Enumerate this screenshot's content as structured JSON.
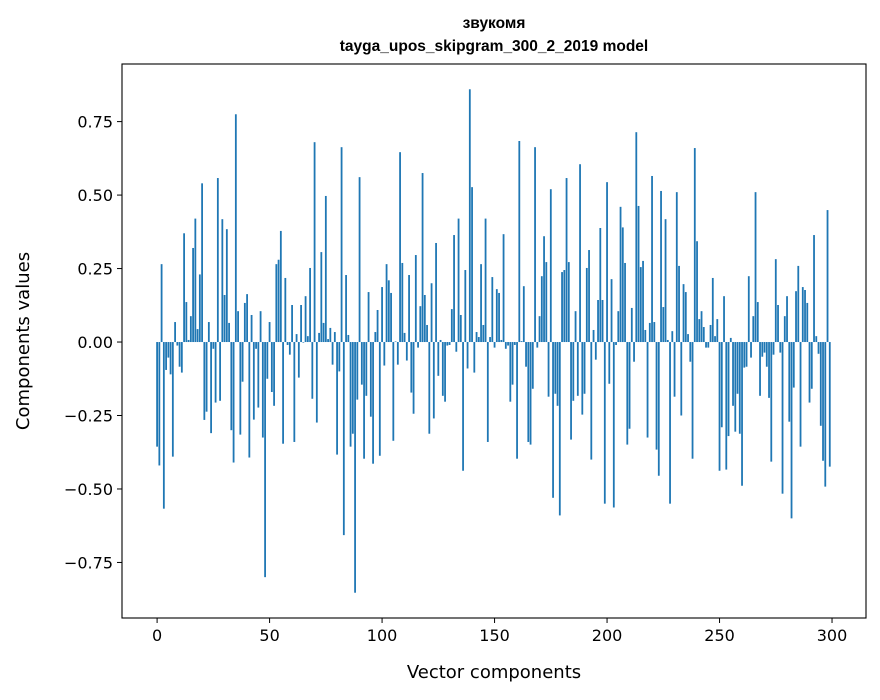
{
  "chart_data": {
    "type": "bar",
    "title": "звукомя",
    "subtitle": "tayga_upos_skipgram_300_2_2019 model",
    "xlabel": "Vector components",
    "ylabel": "Components values",
    "xlim": [
      -15.6,
      315.1
    ],
    "ylim": [
      -0.939,
      0.946
    ],
    "xticks": [
      0,
      50,
      100,
      150,
      200,
      250,
      300
    ],
    "xtick_labels": [
      "0",
      "50",
      "100",
      "150",
      "200",
      "250",
      "300"
    ],
    "yticks": [
      -0.75,
      -0.5,
      -0.25,
      0.0,
      0.25,
      0.5,
      0.75
    ],
    "ytick_labels": [
      "−0.75",
      "−0.50",
      "−0.25",
      "0.00",
      "0.25",
      "0.50",
      "0.75"
    ],
    "grid": false,
    "bar_color": "#1f77b4",
    "values": [
      -0.356,
      -0.42,
      0.265,
      -0.567,
      -0.095,
      -0.053,
      -0.11,
      -0.39,
      0.068,
      -0.012,
      -0.084,
      -0.104,
      0.37,
      0.136,
      0.007,
      0.088,
      0.32,
      0.42,
      0.044,
      0.23,
      0.54,
      -0.265,
      -0.237,
      0.068,
      -0.31,
      -0.023,
      -0.206,
      0.558,
      -0.2,
      0.418,
      0.16,
      0.384,
      0.065,
      -0.3,
      -0.41,
      0.775,
      0.105,
      -0.315,
      -0.135,
      0.133,
      0.163,
      -0.393,
      0.092,
      -0.264,
      -0.023,
      -0.223,
      0.105,
      -0.325,
      -0.8,
      -0.125,
      0.068,
      -0.17,
      -0.217,
      0.265,
      0.28,
      0.378,
      -0.346,
      0.218,
      -0.01,
      -0.043,
      0.126,
      -0.34,
      0.027,
      -0.121,
      0.126,
      -0.002,
      0.156,
      0.02,
      0.252,
      -0.193,
      0.68,
      -0.274,
      0.031,
      0.306,
      0.065,
      0.497,
      0.01,
      0.048,
      -0.077,
      0.034,
      -0.383,
      -0.1,
      0.663,
      -0.657,
      0.228,
      0.024,
      -0.356,
      -0.312,
      -0.853,
      -0.196,
      0.561,
      -0.145,
      -0.397,
      -0.183,
      0.17,
      -0.254,
      -0.414,
      0.034,
      0.109,
      -0.387,
      0.187,
      -0.08,
      0.265,
      0.21,
      0.167,
      -0.336,
      0.002,
      -0.077,
      0.646,
      0.269,
      0.031,
      -0.063,
      0.228,
      -0.172,
      -0.244,
      0.296,
      -0.019,
      0.122,
      0.575,
      0.16,
      0.058,
      -0.312,
      0.2,
      -0.26,
      0.337,
      -0.115,
      0.007,
      -0.183,
      -0.203,
      -0.012,
      -0.01,
      0.112,
      0.364,
      -0.033,
      0.42,
      0.092,
      -0.438,
      0.245,
      -0.09,
      0.86,
      0.527,
      -0.104,
      0.034,
      0.017,
      0.265,
      0.058,
      0.42,
      -0.34,
      0.017,
      0.221,
      -0.019,
      0.18,
      0.167,
      0.007,
      0.367,
      -0.023,
      -0.012,
      -0.203,
      -0.145,
      -0.01,
      -0.397,
      0.684,
      0.003,
      0.19,
      -0.084,
      -0.34,
      -0.349,
      -0.159,
      0.663,
      -0.019,
      0.088,
      0.224,
      0.36,
      0.272,
      -0.186,
      0.52,
      -0.53,
      -0.176,
      -0.217,
      -0.59,
      0.238,
      0.245,
      0.558,
      0.272,
      -0.332,
      -0.2,
      0.105,
      -0.183,
      0.605,
      -0.247,
      -0.176,
      0.252,
      0.313,
      -0.4,
      0.041,
      -0.06,
      0.143,
      0.388,
      0.143,
      -0.55,
      0.544,
      -0.142,
      0.214,
      -0.563,
      -0.01,
      0.105,
      0.46,
      0.39,
      0.269,
      -0.349,
      -0.295,
      0.116,
      -0.067,
      0.714,
      0.463,
      0.255,
      0.276,
      0.041,
      -0.325,
      0.065,
      0.565,
      0.068,
      -0.366,
      -0.455,
      0.514,
      0.119,
      0.418,
      0.007,
      -0.55,
      0.037,
      -0.186,
      0.51,
      0.259,
      -0.25,
      0.197,
      0.17,
      0.027,
      -0.067,
      -0.397,
      0.66,
      0.343,
      0.078,
      0.105,
      0.051,
      -0.019,
      -0.019,
      0.058,
      0.218,
      0.02,
      0.078,
      -0.438,
      -0.29,
      0.156,
      -0.434,
      -0.32,
      0.014,
      -0.217,
      -0.305,
      -0.176,
      -0.312,
      -0.489,
      -0.087,
      -0.084,
      0.224,
      -0.053,
      0.088,
      0.51,
      0.136,
      -0.183,
      -0.05,
      -0.036,
      -0.084,
      -0.19,
      -0.407,
      -0.043,
      0.282,
      0.126,
      -0.036,
      -0.516,
      0.088,
      0.156,
      -0.271,
      -0.6,
      -0.155,
      0.173,
      0.259,
      -0.356,
      0.187,
      0.177,
      0.133,
      -0.206,
      -0.159,
      0.364,
      0.02,
      -0.04,
      -0.285,
      -0.404,
      -0.492,
      0.449,
      -0.424
    ]
  }
}
